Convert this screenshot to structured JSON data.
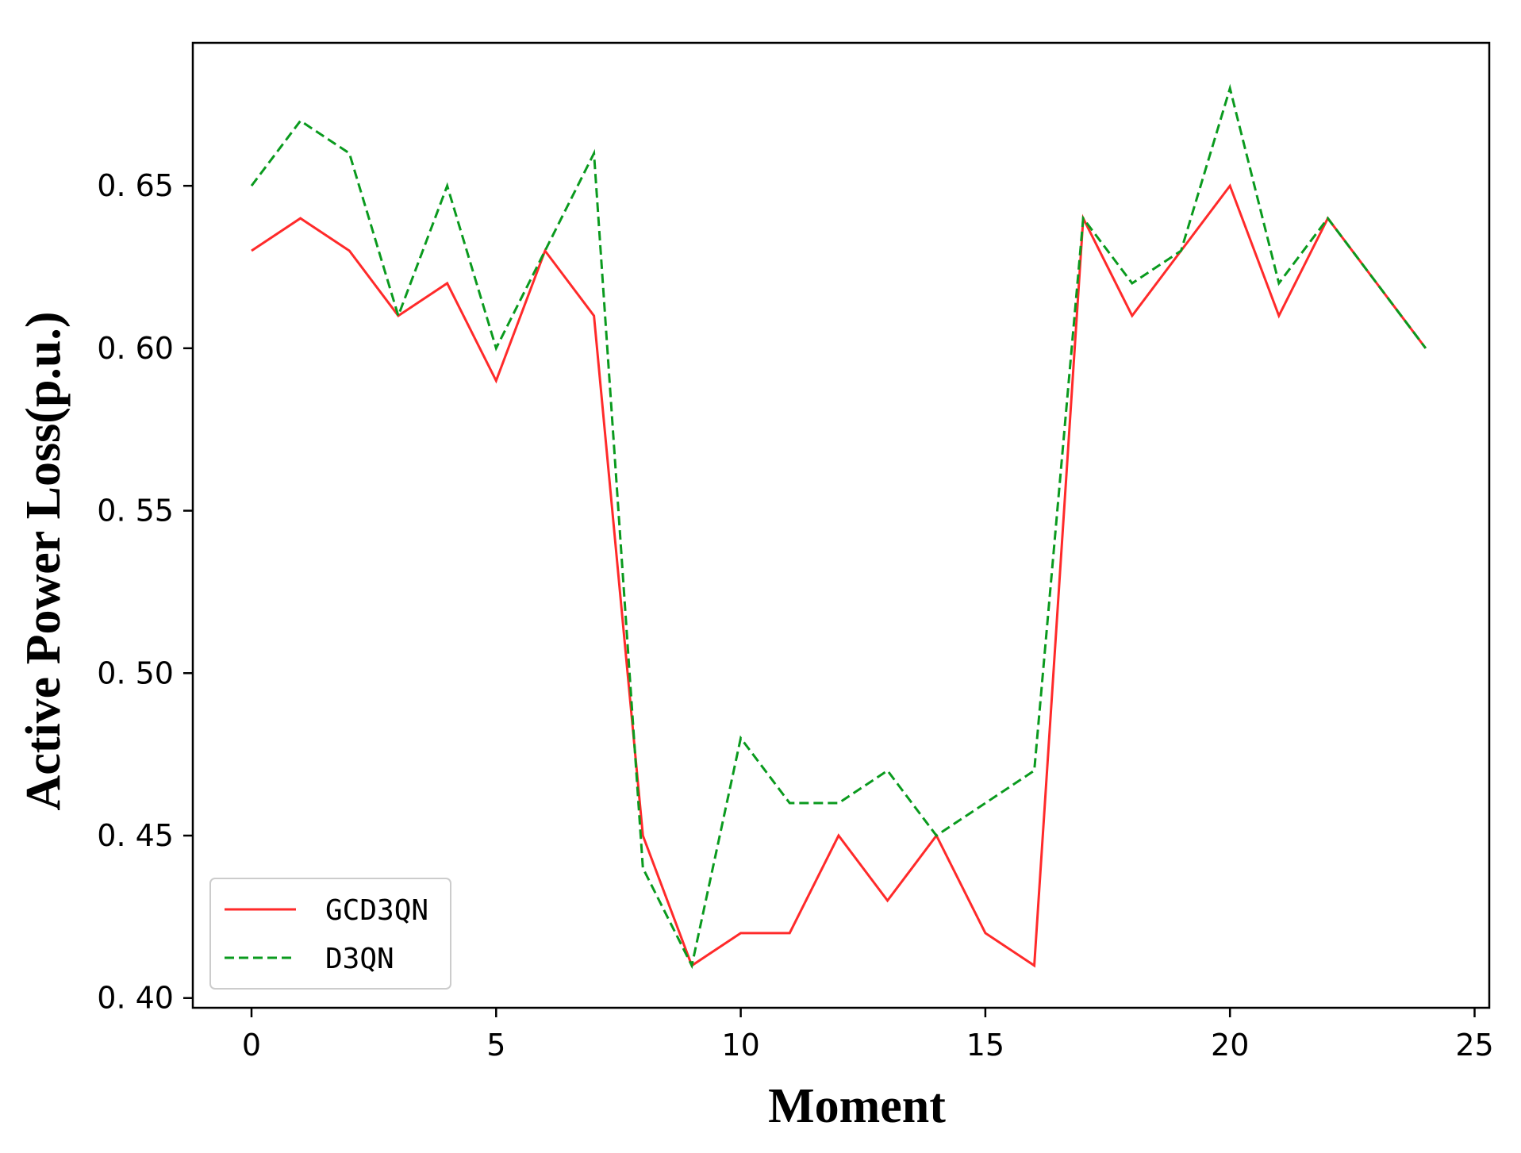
{
  "chart_data": {
    "type": "line",
    "title": "",
    "xlabel": "Moment",
    "ylabel": "Active Power Loss(p.u.)",
    "xlim": [
      -1.2,
      25.3
    ],
    "ylim": [
      0.397,
      0.694
    ],
    "xticks": [
      0,
      5,
      10,
      15,
      20,
      25
    ],
    "yticks": [
      0.4,
      0.45,
      0.5,
      0.55,
      0.6,
      0.65
    ],
    "ytick_labels": [
      "0. 40",
      "0. 45",
      "0. 50",
      "0. 55",
      "0. 60",
      "0. 65"
    ],
    "grid": false,
    "legend_position": "lower-left",
    "x": [
      0,
      1,
      2,
      3,
      4,
      5,
      6,
      7,
      8,
      9,
      10,
      11,
      12,
      13,
      14,
      15,
      16,
      17,
      18,
      19,
      20,
      21,
      22,
      23,
      24
    ],
    "series": [
      {
        "name": "GCD3QN",
        "color": "#ff2a2a",
        "style": "solid",
        "values": [
          0.63,
          0.64,
          0.63,
          0.61,
          0.62,
          0.59,
          0.63,
          0.61,
          0.45,
          0.41,
          0.42,
          0.42,
          0.45,
          0.43,
          0.45,
          0.42,
          0.41,
          0.64,
          0.61,
          0.63,
          0.65,
          0.61,
          0.64,
          0.62,
          0.6
        ]
      },
      {
        "name": "D3QN",
        "color": "#0a9a1e",
        "style": "dashed",
        "values": [
          0.65,
          0.67,
          0.66,
          0.61,
          0.65,
          0.6,
          0.63,
          0.66,
          0.44,
          0.41,
          0.48,
          0.46,
          0.46,
          0.47,
          0.45,
          0.46,
          0.47,
          0.64,
          0.62,
          0.63,
          0.68,
          0.62,
          0.64,
          0.62,
          0.6
        ]
      }
    ]
  }
}
